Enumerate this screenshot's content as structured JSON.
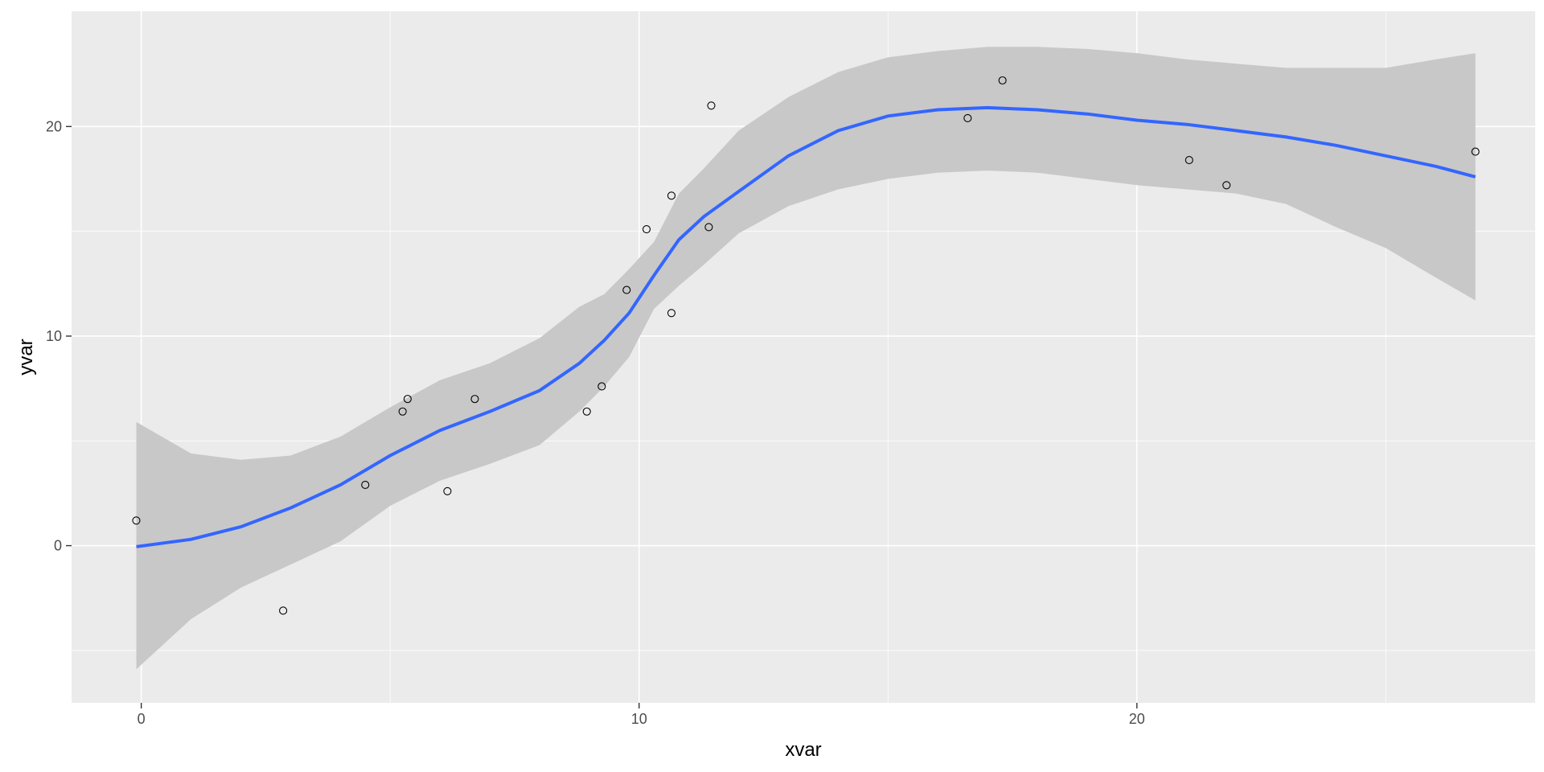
{
  "chart_data": {
    "type": "scatter",
    "xlabel": "xvar",
    "ylabel": "yvar",
    "xlim": [
      -1.4,
      28
    ],
    "ylim": [
      -7.5,
      25.5
    ],
    "x_ticks": [
      0,
      10,
      20
    ],
    "x_minor_ticks": [
      5,
      15,
      25
    ],
    "y_ticks": [
      0,
      10,
      20
    ],
    "y_minor_ticks": [
      -5,
      5,
      15
    ],
    "x_tick_labels": [
      "0",
      "10",
      "20"
    ],
    "y_tick_labels": [
      "0",
      "10",
      "20"
    ],
    "grid": true,
    "points": {
      "x": [
        -0.1,
        2.85,
        4.5,
        5.25,
        5.35,
        6.15,
        6.7,
        8.95,
        9.25,
        9.75,
        10.15,
        10.65,
        10.65,
        11.4,
        11.45,
        16.6,
        17.3,
        21.05,
        21.8,
        26.8
      ],
      "y": [
        1.2,
        -3.1,
        2.9,
        6.4,
        7.0,
        2.6,
        7.0,
        6.4,
        7.6,
        12.2,
        15.1,
        16.7,
        11.1,
        15.2,
        21.0,
        20.4,
        22.2,
        18.4,
        17.2,
        18.8
      ]
    },
    "smooth": {
      "x": [
        -0.1,
        1,
        2,
        3,
        4,
        5,
        6,
        7,
        8,
        8.8,
        9.3,
        9.8,
        10.3,
        10.8,
        11.3,
        12,
        13,
        14,
        15,
        16,
        17,
        18,
        19,
        20,
        21,
        22,
        23,
        24,
        25,
        26,
        26.8
      ],
      "y": [
        -0.05,
        0.3,
        0.9,
        1.8,
        2.9,
        4.3,
        5.5,
        6.4,
        7.4,
        8.7,
        9.8,
        11.1,
        12.9,
        14.6,
        15.7,
        16.9,
        18.6,
        19.8,
        20.5,
        20.8,
        20.9,
        20.8,
        20.6,
        20.3,
        20.1,
        19.8,
        19.5,
        19.1,
        18.6,
        18.1,
        17.6
      ],
      "ymin": [
        -5.9,
        -3.5,
        -2.0,
        -0.9,
        0.2,
        1.9,
        3.1,
        3.9,
        4.8,
        6.4,
        7.6,
        9.0,
        11.3,
        12.4,
        13.4,
        14.9,
        16.2,
        17.0,
        17.5,
        17.8,
        17.9,
        17.8,
        17.5,
        17.2,
        17.0,
        16.8,
        16.3,
        15.2,
        14.2,
        12.8,
        11.7
      ],
      "ymax": [
        5.9,
        4.4,
        4.1,
        4.3,
        5.2,
        6.6,
        7.9,
        8.7,
        9.9,
        11.4,
        12.0,
        13.2,
        14.5,
        16.8,
        18.0,
        19.8,
        21.4,
        22.6,
        23.3,
        23.6,
        23.8,
        23.8,
        23.7,
        23.5,
        23.2,
        23.0,
        22.8,
        22.8,
        22.8,
        23.2,
        23.5
      ]
    },
    "colors": {
      "panel_background": "#ebebeb",
      "grid": "#ffffff",
      "smooth_line": "#3366ff",
      "ribbon": "#c8c8c8",
      "point_stroke": "#000000"
    }
  }
}
